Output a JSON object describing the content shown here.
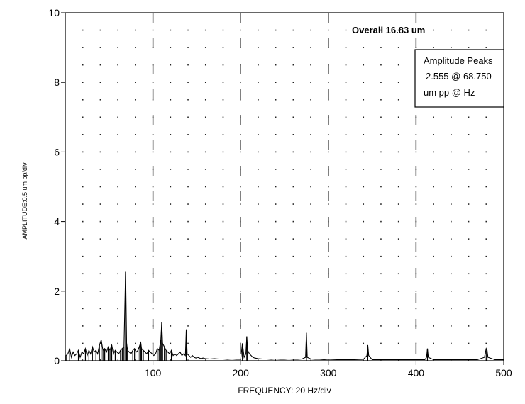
{
  "chart_data": {
    "type": "line",
    "title": "",
    "xlabel": "FREQUENCY: 20 Hz/div",
    "ylabel": "AMPLITUDE:0.5 um pp/div",
    "xlim": [
      0,
      500
    ],
    "ylim": [
      0,
      10
    ],
    "x_ticks": [
      100,
      200,
      300,
      400,
      500
    ],
    "y_ticks": [
      0,
      2,
      4,
      6,
      8,
      10
    ],
    "grid": true,
    "annotation_overall": "Overall 16.83 um",
    "peak_box": {
      "title": "Amplitude Peaks",
      "line1": "2.555 @ 68.750",
      "line2": "um pp @  Hz"
    },
    "series": [
      {
        "x": [
          1,
          3,
          5,
          7,
          9,
          11,
          13,
          15,
          17,
          19,
          21,
          23,
          25,
          27,
          29,
          31,
          33,
          35,
          37,
          39,
          41,
          43,
          45,
          47,
          49,
          51,
          53,
          55,
          57,
          59,
          61,
          63,
          65,
          67,
          68.75,
          69,
          70,
          71,
          73,
          75,
          77,
          79,
          81,
          83,
          85,
          86,
          87,
          89,
          91,
          93,
          95,
          97,
          99,
          101,
          103,
          105,
          107,
          109,
          110,
          111,
          113,
          115,
          117,
          119,
          121,
          123,
          125,
          127,
          129,
          131,
          133,
          135,
          137,
          138,
          139,
          141,
          143,
          145,
          147,
          149,
          151,
          153,
          155,
          157,
          160,
          165,
          170,
          175,
          180,
          185,
          190,
          195,
          200,
          202,
          204,
          206,
          207,
          208,
          210,
          212,
          214,
          216,
          220,
          225,
          230,
          235,
          240,
          245,
          250,
          255,
          260,
          265,
          270,
          274,
          275,
          276,
          280,
          285,
          290,
          295,
          300,
          310,
          320,
          330,
          340,
          344,
          345,
          346,
          350,
          360,
          370,
          380,
          390,
          400,
          410,
          412,
          413,
          414,
          420,
          430,
          440,
          450,
          460,
          470,
          478,
          480,
          481,
          482,
          490,
          500
        ],
        "y": [
          0.15,
          0.2,
          0.35,
          0.1,
          0.25,
          0.15,
          0.2,
          0.3,
          0.1,
          0.25,
          0.2,
          0.35,
          0.15,
          0.3,
          0.2,
          0.4,
          0.25,
          0.3,
          0.2,
          0.45,
          0.6,
          0.3,
          0.35,
          0.25,
          0.4,
          0.3,
          0.45,
          0.2,
          0.3,
          0.25,
          0.2,
          0.3,
          0.35,
          0.4,
          2.555,
          2.3,
          0.5,
          0.3,
          0.25,
          0.2,
          0.3,
          0.35,
          0.25,
          0.3,
          0.45,
          0.55,
          0.35,
          0.3,
          0.25,
          0.2,
          0.3,
          0.25,
          0.2,
          0.15,
          0.2,
          0.35,
          0.3,
          0.6,
          1.1,
          0.5,
          0.4,
          0.3,
          0.25,
          0.2,
          0.3,
          0.15,
          0.2,
          0.15,
          0.2,
          0.25,
          0.15,
          0.2,
          0.15,
          0.9,
          0.2,
          0.15,
          0.1,
          0.15,
          0.1,
          0.08,
          0.1,
          0.08,
          0.06,
          0.08,
          0.06,
          0.05,
          0.06,
          0.05,
          0.05,
          0.04,
          0.05,
          0.04,
          0.04,
          0.5,
          0.1,
          0.2,
          0.7,
          0.3,
          0.2,
          0.15,
          0.1,
          0.08,
          0.06,
          0.05,
          0.05,
          0.04,
          0.05,
          0.04,
          0.04,
          0.05,
          0.04,
          0.04,
          0.05,
          0.1,
          0.8,
          0.1,
          0.05,
          0.04,
          0.04,
          0.03,
          0.04,
          0.03,
          0.03,
          0.03,
          0.04,
          0.15,
          0.45,
          0.15,
          0.03,
          0.03,
          0.03,
          0.03,
          0.03,
          0.03,
          0.03,
          0.1,
          0.35,
          0.1,
          0.03,
          0.03,
          0.03,
          0.03,
          0.03,
          0.03,
          0.1,
          0.35,
          0.3,
          0.1,
          0.03,
          0.03
        ]
      }
    ]
  }
}
